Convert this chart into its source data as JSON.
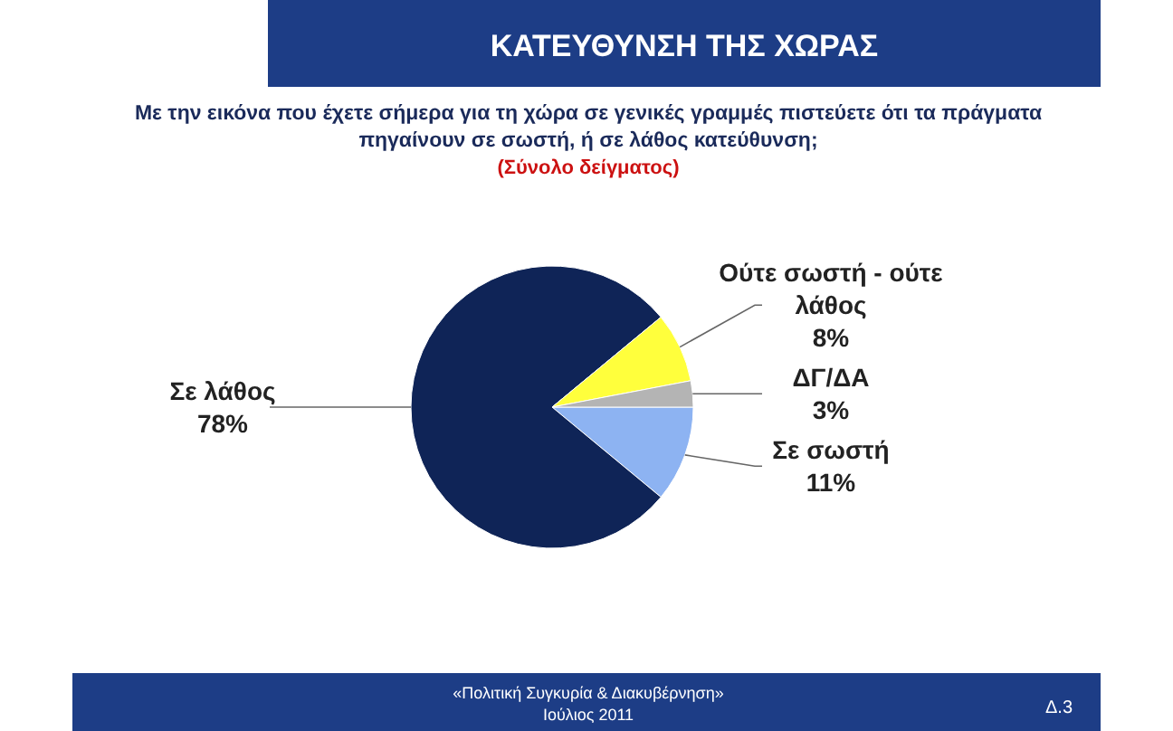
{
  "chart_data": {
    "type": "pie",
    "title": "ΚΑΤΕΥΘΥΝΣΗ ΤΗΣ ΧΩΡΑΣ",
    "subtitle": "Με την εικόνα που έχετε σήμερα για τη χώρα σε γενικές γραμμές πιστεύετε ότι τα πράγματα πηγαίνουν σε σωστή, ή σε λάθος κατεύθυνση;",
    "annotations": [
      "(Σύνολο δείγματος)",
      "«Πολιτική Συγκυρία & Διακυβέρνηση»",
      "Ιούλιος 2011",
      "Δ.3"
    ],
    "categories": [
      "Σε σωστή",
      "Σε λάθος",
      "Ούτε σωστή - ούτε λάθος",
      "ΔΓ/ΔΑ"
    ],
    "values": [
      11,
      78,
      8,
      3
    ],
    "value_labels": [
      "11%",
      "78%",
      "8%",
      "3%"
    ],
    "colors": [
      "#8db3f2",
      "#0f2457",
      "#ffff3c",
      "#b4b4b4"
    ]
  }
}
